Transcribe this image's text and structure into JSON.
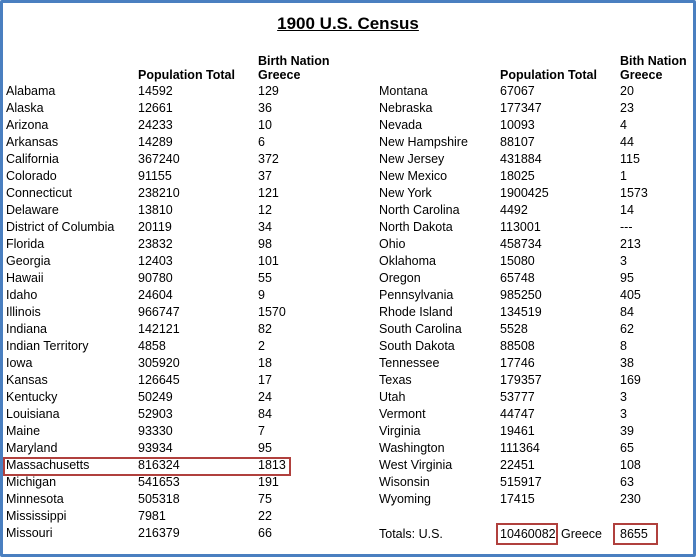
{
  "title": "1900 U.S. Census",
  "left_headers": {
    "pop": "Population Total",
    "birth_line1": "Birth Nation",
    "birth_line2": "Greece"
  },
  "right_headers": {
    "pop": "Population Total",
    "birth_line1": "Bith Nation",
    "birth_line2": "Greece"
  },
  "left_rows": [
    {
      "state": "Alabama",
      "pop": "14592",
      "greece": "129"
    },
    {
      "state": "Alaska",
      "pop": "12661",
      "greece": "36"
    },
    {
      "state": "Arizona",
      "pop": "24233",
      "greece": "10"
    },
    {
      "state": "Arkansas",
      "pop": "14289",
      "greece": "6"
    },
    {
      "state": "California",
      "pop": "367240",
      "greece": "372"
    },
    {
      "state": "Colorado",
      "pop": "91155",
      "greece": "37"
    },
    {
      "state": "Connecticut",
      "pop": "238210",
      "greece": "121"
    },
    {
      "state": "Delaware",
      "pop": "13810",
      "greece": "12"
    },
    {
      "state": "District of Columbia",
      "pop": "20119",
      "greece": "34"
    },
    {
      "state": "Florida",
      "pop": "23832",
      "greece": "98"
    },
    {
      "state": "Georgia",
      "pop": "12403",
      "greece": "101"
    },
    {
      "state": "Hawaii",
      "pop": "90780",
      "greece": "55"
    },
    {
      "state": "Idaho",
      "pop": "24604",
      "greece": "9"
    },
    {
      "state": "Illinois",
      "pop": "966747",
      "greece": "1570"
    },
    {
      "state": "Indiana",
      "pop": "142121",
      "greece": "82"
    },
    {
      "state": "Indian Territory",
      "pop": "4858",
      "greece": "2"
    },
    {
      "state": "Iowa",
      "pop": "305920",
      "greece": "18"
    },
    {
      "state": "Kansas",
      "pop": "126645",
      "greece": "17"
    },
    {
      "state": "Kentucky",
      "pop": "50249",
      "greece": "24"
    },
    {
      "state": "Louisiana",
      "pop": "52903",
      "greece": "84"
    },
    {
      "state": "Maine",
      "pop": "93330",
      "greece": "7"
    },
    {
      "state": "Maryland",
      "pop": "93934",
      "greece": "95"
    },
    {
      "state": "Massachusetts",
      "pop": "816324",
      "greece": "1813"
    },
    {
      "state": "Michigan",
      "pop": "541653",
      "greece": "191"
    },
    {
      "state": "Minnesota",
      "pop": "505318",
      "greece": "75"
    },
    {
      "state": "Mississippi",
      "pop": "7981",
      "greece": "22"
    },
    {
      "state": "Missouri",
      "pop": "216379",
      "greece": "66"
    }
  ],
  "right_rows": [
    {
      "state": "Montana",
      "pop": "67067",
      "greece": "20"
    },
    {
      "state": "Nebraska",
      "pop": "177347",
      "greece": "23"
    },
    {
      "state": "Nevada",
      "pop": "10093",
      "greece": "4"
    },
    {
      "state": "New Hampshire",
      "pop": "88107",
      "greece": "44"
    },
    {
      "state": "New Jersey",
      "pop": "431884",
      "greece": "115"
    },
    {
      "state": "New Mexico",
      "pop": "18025",
      "greece": "1"
    },
    {
      "state": "New York",
      "pop": "1900425",
      "greece": "1573"
    },
    {
      "state": "North Carolina",
      "pop": "4492",
      "greece": "14"
    },
    {
      "state": "North Dakota",
      "pop": "113001",
      "greece": "---"
    },
    {
      "state": "Ohio",
      "pop": "458734",
      "greece": "213"
    },
    {
      "state": "Oklahoma",
      "pop": "15080",
      "greece": "3"
    },
    {
      "state": "Oregon",
      "pop": "65748",
      "greece": "95"
    },
    {
      "state": "Pennsylvania",
      "pop": "985250",
      "greece": "405"
    },
    {
      "state": "Rhode Island",
      "pop": "134519",
      "greece": "84"
    },
    {
      "state": "South Carolina",
      "pop": "5528",
      "greece": "62"
    },
    {
      "state": "South Dakota",
      "pop": "88508",
      "greece": "8"
    },
    {
      "state": "Tennessee",
      "pop": "17746",
      "greece": "38"
    },
    {
      "state": "Texas",
      "pop": "179357",
      "greece": "169"
    },
    {
      "state": "Utah",
      "pop": "53777",
      "greece": "3"
    },
    {
      "state": "Vermont",
      "pop": "44747",
      "greece": "3"
    },
    {
      "state": "Virginia",
      "pop": "19461",
      "greece": "39"
    },
    {
      "state": "Washington",
      "pop": "111364",
      "greece": "65"
    },
    {
      "state": "West Virginia",
      "pop": "22451",
      "greece": "108"
    },
    {
      "state": "Wisonsin",
      "pop": "515917",
      "greece": "63"
    },
    {
      "state": "Wyoming",
      "pop": "17415",
      "greece": "230"
    }
  ],
  "totals": {
    "label": "Totals: U.S.",
    "us_value": "10460082",
    "greece_label": "Greece",
    "greece_value": "8655"
  },
  "highlight_color": "#b0403d",
  "frame_color": "#4a7fc0"
}
